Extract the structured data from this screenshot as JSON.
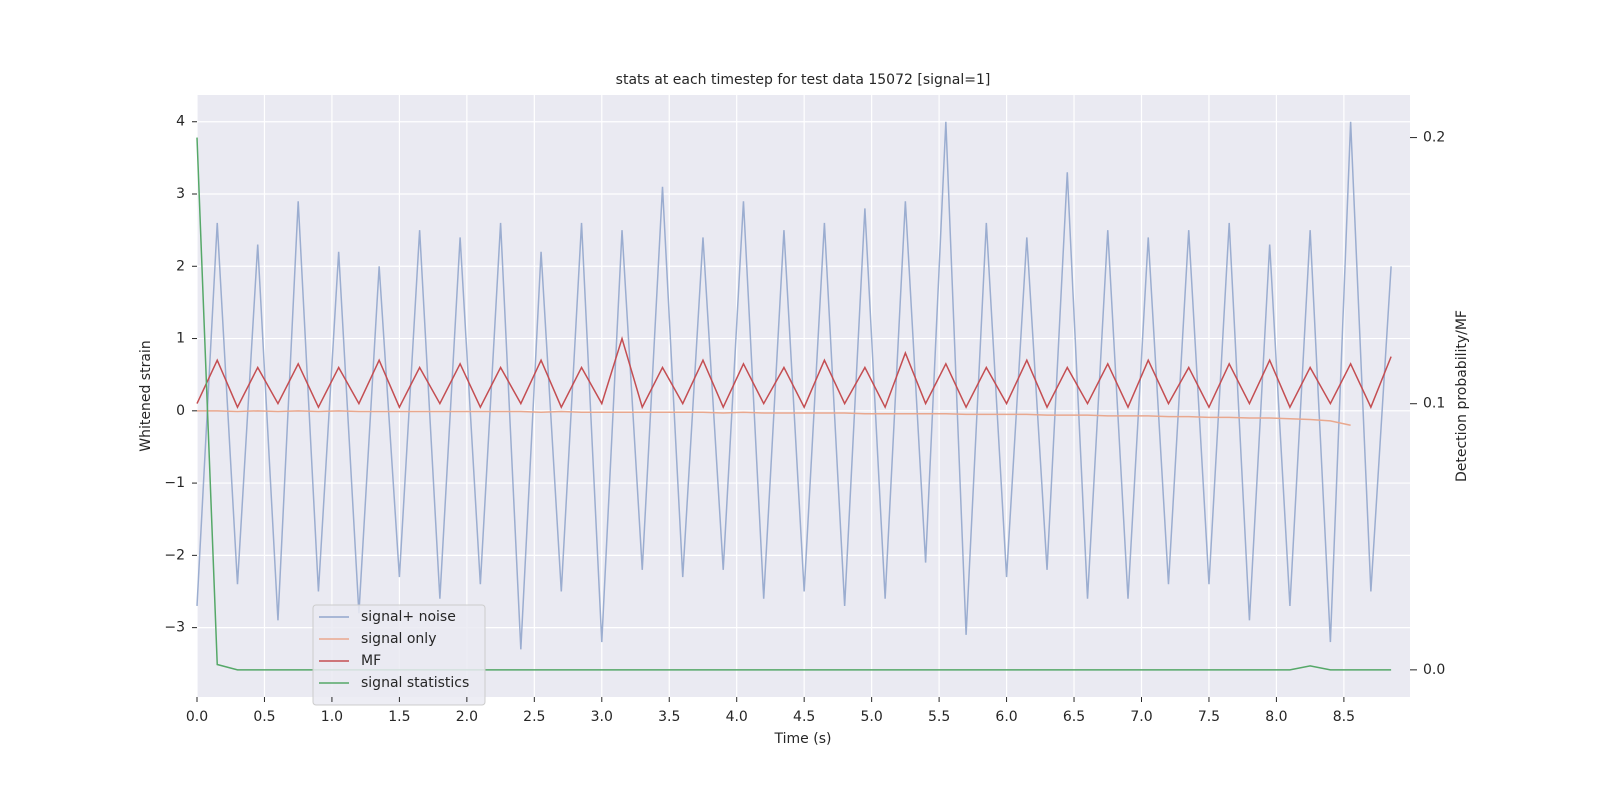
{
  "chart_data": {
    "type": "line",
    "title": "stats at each timestep for test data 15072 [signal=1]",
    "x_label": "Time (s)",
    "y_label": "Whitened strain",
    "y2_label": "Detection probability/MF",
    "xlim": [
      0,
      8.99
    ],
    "ylim": [
      -3.96,
      4.37
    ],
    "y2lim": [
      -0.0102,
      0.216
    ],
    "xticks": [
      {
        "value": 0,
        "label": "0.0"
      },
      0.5,
      {
        "value": 1,
        "label": "1.0"
      },
      1.5,
      {
        "value": 2,
        "label": "2.0"
      },
      2.5,
      {
        "value": 3,
        "label": "3.0"
      },
      3.5,
      {
        "value": 4,
        "label": "4.0"
      },
      4.5,
      {
        "value": 5,
        "label": "5.0"
      },
      5.5,
      {
        "value": 6,
        "label": "6.0"
      },
      6.5,
      {
        "value": 7,
        "label": "7.0"
      },
      7.5,
      {
        "value": 8,
        "label": "8.0"
      },
      8.5
    ],
    "yticks": [
      {
        "value": -3,
        "label": "−3"
      },
      {
        "value": -2,
        "label": "−2"
      },
      {
        "value": -1,
        "label": "−1"
      },
      0,
      1,
      2,
      3,
      4
    ],
    "y2ticks": [
      {
        "value": 0,
        "label": "0.0"
      },
      0.1,
      0.2
    ],
    "grid": true,
    "legend": "lower left",
    "x": [
      0,
      0.15,
      0.3,
      0.45,
      0.6,
      0.75,
      0.9,
      1.05,
      1.2,
      1.35,
      1.5,
      1.65,
      1.8,
      1.95,
      2.1,
      2.25,
      2.4,
      2.55,
      2.7,
      2.85,
      3,
      3.15,
      3.3,
      3.45,
      3.6,
      3.75,
      3.9,
      4.05,
      4.2,
      4.35,
      4.5,
      4.65,
      4.8,
      4.95,
      5.1,
      5.25,
      5.4,
      5.55,
      5.7,
      5.85,
      6,
      6.15,
      6.3,
      6.45,
      6.6,
      6.75,
      6.9,
      7.05,
      7.2,
      7.35,
      7.5,
      7.65,
      7.8,
      7.95,
      8.1,
      8.25,
      8.4,
      8.55,
      8.7,
      8.85
    ],
    "series": [
      {
        "name": "signal+ noise",
        "color": "#92a6cc",
        "values": [
          -2.7,
          2.6,
          -2.4,
          2.3,
          -2.9,
          2.9,
          -2.5,
          2.2,
          -2.8,
          2.0,
          -2.3,
          2.5,
          -2.6,
          2.4,
          -2.4,
          2.6,
          -3.3,
          2.2,
          -2.5,
          2.6,
          -3.2,
          2.5,
          -2.2,
          3.1,
          -2.3,
          2.4,
          -2.2,
          2.9,
          -2.6,
          2.5,
          -2.5,
          2.6,
          -2.7,
          2.8,
          -2.6,
          2.9,
          -2.1,
          4.0,
          -3.1,
          2.6,
          -2.3,
          2.4,
          -2.2,
          3.3,
          -2.6,
          2.5,
          -2.6,
          2.4,
          -2.4,
          2.5,
          -2.4,
          2.6,
          -2.9,
          2.3,
          -2.7,
          2.5,
          -3.2,
          4.0,
          -2.5,
          2.0
        ]
      },
      {
        "name": "signal only",
        "color": "#e9a88e",
        "values": [
          0.0,
          0.0,
          -0.01,
          0.0,
          -0.01,
          0.0,
          -0.01,
          0.0,
          -0.01,
          -0.01,
          -0.01,
          -0.01,
          -0.01,
          -0.01,
          -0.01,
          -0.01,
          -0.01,
          -0.02,
          -0.01,
          -0.02,
          -0.02,
          -0.02,
          -0.02,
          -0.02,
          -0.02,
          -0.02,
          -0.03,
          -0.02,
          -0.03,
          -0.03,
          -0.03,
          -0.03,
          -0.03,
          -0.04,
          -0.04,
          -0.04,
          -0.04,
          -0.04,
          -0.05,
          -0.05,
          -0.05,
          -0.05,
          -0.06,
          -0.06,
          -0.06,
          -0.07,
          -0.07,
          -0.07,
          -0.08,
          -0.08,
          -0.09,
          -0.09,
          -0.1,
          -0.1,
          -0.11,
          -0.12,
          -0.14,
          -0.2,
          null,
          null
        ]
      },
      {
        "name": "MF",
        "color": "#c44e52",
        "values": [
          0.1,
          0.7,
          0.05,
          0.6,
          0.1,
          0.65,
          0.05,
          0.6,
          0.1,
          0.7,
          0.05,
          0.6,
          0.1,
          0.65,
          0.05,
          0.6,
          0.1,
          0.7,
          0.05,
          0.6,
          0.1,
          1.0,
          0.05,
          0.6,
          0.1,
          0.7,
          0.05,
          0.65,
          0.1,
          0.6,
          0.05,
          0.7,
          0.1,
          0.6,
          0.05,
          0.8,
          0.1,
          0.65,
          0.05,
          0.6,
          0.1,
          0.7,
          0.05,
          0.6,
          0.1,
          0.65,
          0.05,
          0.7,
          0.1,
          0.6,
          0.05,
          0.65,
          0.1,
          0.7,
          0.05,
          0.6,
          0.1,
          0.65,
          0.05,
          0.75
        ]
      },
      {
        "name": "signal statistics",
        "color": "#55a868",
        "axis": "y2",
        "values": [
          0.2,
          0.002,
          0.0,
          0.0,
          0.0,
          0.0,
          0.0,
          0.0,
          0.0,
          0.0,
          0.0,
          0.0,
          0.0,
          0.0,
          0.0,
          0.0,
          0.0,
          0.0,
          0.0,
          0.0,
          0.0,
          0.0,
          0.0,
          0.0,
          0.0,
          0.0,
          0.0,
          0.0,
          0.0,
          0.0,
          0.0,
          0.0,
          0.0,
          0.0,
          0.0,
          0.0,
          0.0,
          0.0,
          0.0,
          0.0,
          0.0,
          0.0,
          0.0,
          0.0,
          0.0,
          0.0,
          0.0,
          0.0,
          0.0,
          0.0,
          0.0,
          0.0,
          0.0,
          0.0,
          0.0,
          0.0015,
          0.0,
          0.0,
          0.0,
          0.0
        ]
      }
    ]
  }
}
